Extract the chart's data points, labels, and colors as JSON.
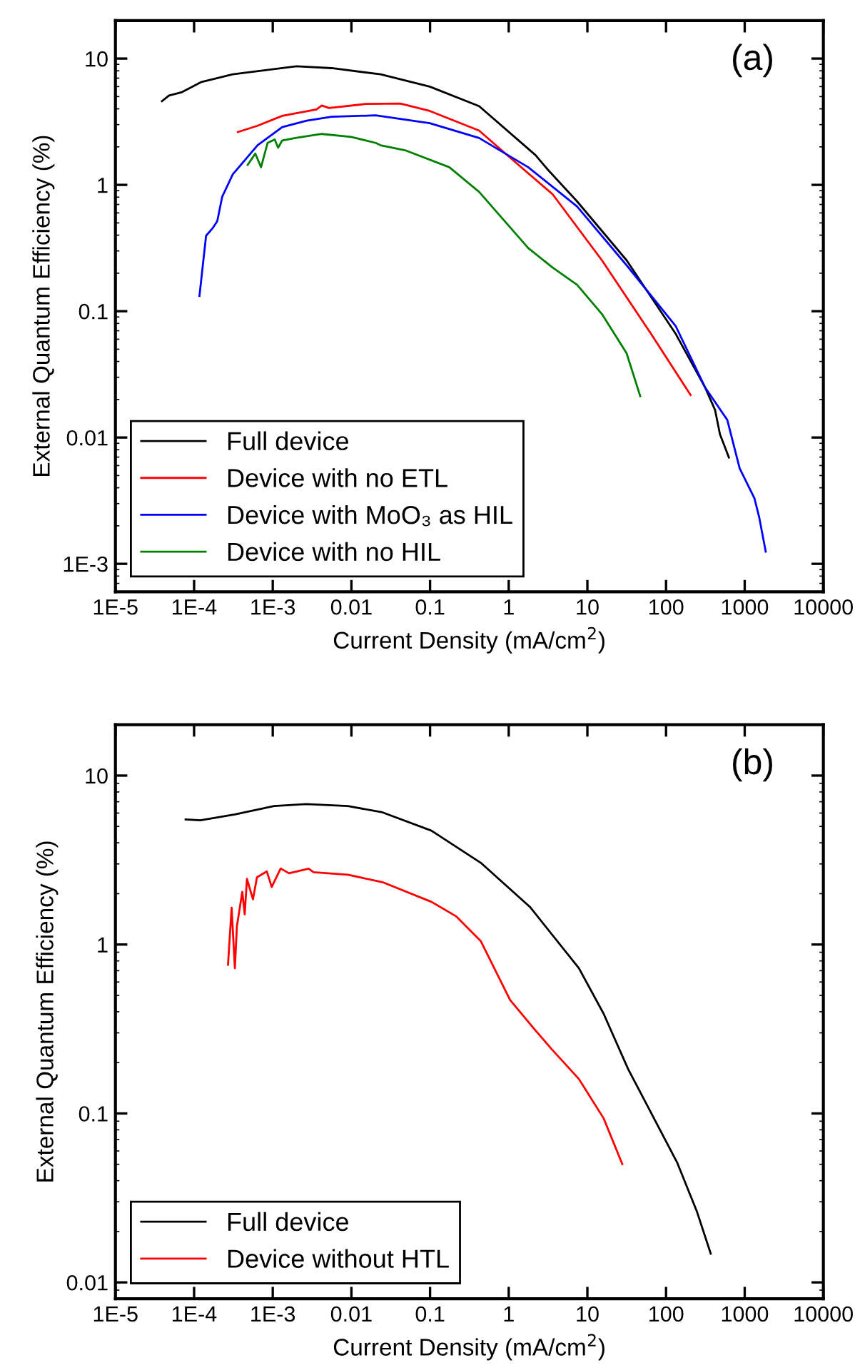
{
  "chart_data": [
    {
      "type": "line",
      "xlabel": "Current Density (mA/cm$^{2}$)",
      "ylabel": "External Quantum Efficiency (%)",
      "log": "xy",
      "legend": "bottom left",
      "grid": false,
      "annotations": [
        "(a)"
      ],
      "xlim": [
        1e-05,
        10000
      ],
      "ylim": [
        0.0006,
        20
      ],
      "xticks": [
        {
          "value": 1e-05,
          "label": "1E-5"
        },
        {
          "value": 0.0001,
          "label": "1E-4"
        },
        {
          "value": 0.001,
          "label": "1E-3"
        },
        0.01,
        0.1,
        1,
        10,
        100,
        1000,
        10000
      ],
      "yticks": [
        {
          "value": 0.001,
          "label": "1E-3"
        },
        0.01,
        0.1,
        1,
        10
      ],
      "series": [
        {
          "name": "Full device",
          "color": "#000000",
          "x": [
            3.9e-05,
            4.8e-05,
            6.9e-05,
            0.000122,
            0.00031,
            0.002,
            0.0056,
            0.0235,
            0.099,
            0.42,
            2.19,
            3.14,
            7.4,
            31.5,
            133,
            315,
            420,
            485,
            630
          ],
          "values": [
            4.6,
            5.1,
            5.4,
            6.5,
            7.5,
            8.7,
            8.4,
            7.5,
            6.0,
            4.2,
            1.72,
            1.32,
            0.74,
            0.253,
            0.066,
            0.0248,
            0.0165,
            0.0106,
            0.00695
          ]
        },
        {
          "name": "Device with no ETL",
          "color": "#ff0000",
          "x": [
            0.00036,
            0.00064,
            0.00132,
            0.0036,
            0.0042,
            0.0052,
            0.0152,
            0.0418,
            0.099,
            0.42,
            1.0,
            3.63,
            15.3,
            64.6,
            205
          ],
          "values": [
            2.62,
            2.94,
            3.52,
            3.96,
            4.25,
            4.06,
            4.37,
            4.4,
            3.85,
            2.69,
            1.68,
            0.84,
            0.253,
            0.066,
            0.0217
          ]
        },
        {
          "name": "Device with MoO₃ as HIL",
          "color": "#0000ff",
          "x": [
            0.000117,
            0.000142,
            0.000171,
            0.000197,
            0.000228,
            0.00031,
            0.00042,
            0.00064,
            0.00132,
            0.0027,
            0.0056,
            0.0203,
            0.099,
            0.42,
            1.77,
            7.4,
            31.5,
            133,
            315,
            600,
            863,
            1330,
            1530,
            1850
          ],
          "values": [
            0.132,
            0.395,
            0.452,
            0.516,
            0.807,
            1.21,
            1.51,
            2.06,
            2.87,
            3.22,
            3.46,
            3.55,
            3.08,
            2.35,
            1.38,
            0.675,
            0.231,
            0.076,
            0.0248,
            0.0138,
            0.0057,
            0.0033,
            0.00233,
            0.00125
          ]
        },
        {
          "name": "Device with no HIL",
          "color": "#008000",
          "x": [
            0.00048,
            0.0006,
            0.00071,
            0.00086,
            0.00106,
            0.00117,
            0.00132,
            0.002,
            0.0042,
            0.0099,
            0.0203,
            0.0235,
            0.048,
            0.176,
            0.42,
            1.77,
            3.63,
            7.4,
            15.3,
            31.5,
            47
          ],
          "values": [
            1.44,
            1.77,
            1.38,
            2.15,
            2.29,
            1.97,
            2.25,
            2.36,
            2.53,
            2.4,
            2.15,
            2.06,
            1.88,
            1.38,
            0.88,
            0.316,
            0.221,
            0.162,
            0.095,
            0.0465,
            0.0212
          ]
        }
      ]
    },
    {
      "type": "line",
      "xlabel": "Current Density (mA/cm$^{2}$)",
      "ylabel": "External Quantum Efficiency (%)",
      "log": "xy",
      "legend": "bottom left",
      "grid": false,
      "annotations": [
        "(b)"
      ],
      "xlim": [
        1e-05,
        10000
      ],
      "ylim": [
        0.008,
        20
      ],
      "xticks": [
        {
          "value": 1e-05,
          "label": "1E-5"
        },
        {
          "value": 0.0001,
          "label": "1E-4"
        },
        {
          "value": 0.001,
          "label": "1E-3"
        },
        0.01,
        0.1,
        1,
        10,
        100,
        1000,
        10000
      ],
      "yticks": [
        0.01,
        0.1,
        1,
        10
      ],
      "series": [
        {
          "name": "Full device",
          "color": "#000000",
          "x": [
            7.8e-05,
            0.00012,
            0.00033,
            0.00104,
            0.00266,
            0.009,
            0.0248,
            0.104,
            0.44,
            1.86,
            7.8,
            16.1,
            33,
            139,
            248,
            370
          ],
          "values": [
            5.5,
            5.43,
            5.89,
            6.6,
            6.78,
            6.6,
            6.06,
            4.72,
            3.05,
            1.67,
            0.724,
            0.389,
            0.183,
            0.051,
            0.0261,
            0.0148
          ]
        },
        {
          "name": "Device without HTL",
          "color": "#ff0000",
          "x": [
            0.00027,
            0.0003,
            0.00033,
            0.00035,
            0.00041,
            0.00044,
            0.00047,
            0.00056,
            0.00063,
            0.00084,
            0.00097,
            0.00126,
            0.00161,
            0.00286,
            0.0033,
            0.009,
            0.0248,
            0.104,
            0.214,
            0.44,
            1.04,
            2.14,
            3.55,
            7.8,
            16.1,
            27.8
          ],
          "values": [
            0.76,
            1.65,
            0.724,
            1.28,
            2.05,
            1.51,
            2.45,
            1.85,
            2.5,
            2.71,
            2.19,
            2.82,
            2.64,
            2.81,
            2.68,
            2.59,
            2.34,
            1.79,
            1.47,
            1.05,
            0.47,
            0.314,
            0.239,
            0.16,
            0.0935,
            0.0501
          ]
        }
      ]
    }
  ]
}
